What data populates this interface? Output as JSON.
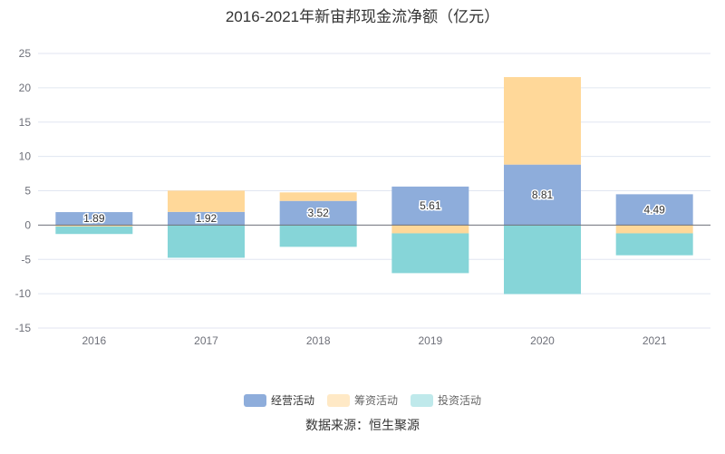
{
  "chart_data": {
    "type": "bar",
    "stacked": true,
    "title": "2016-2021年新宙邦现金流净额（亿元）",
    "source": "数据来源：恒生聚源",
    "categories": [
      "2016",
      "2017",
      "2018",
      "2019",
      "2020",
      "2021"
    ],
    "ylim": [
      -15,
      25
    ],
    "yticks": [
      -15,
      -10,
      -5,
      0,
      5,
      10,
      15,
      20,
      25
    ],
    "grid": true,
    "legend_position": "bottom",
    "series": [
      {
        "name": "经营活动",
        "color": "#8eaddb",
        "values": [
          1.89,
          1.92,
          3.52,
          5.61,
          8.81,
          4.49
        ],
        "labels": [
          "1.89",
          "1.92",
          "3.52",
          "5.61",
          "8.81",
          "4.49"
        ]
      },
      {
        "name": "筹资活动",
        "color": "#ffd899",
        "legend_color": "#ffe9c6",
        "values": [
          -0.2,
          3.1,
          1.24,
          -1.2,
          12.75,
          -1.2
        ]
      },
      {
        "name": "投资活动",
        "color": "#86d5d8",
        "legend_color": "#bfe9eb",
        "values": [
          -1.1,
          -4.76,
          -3.17,
          -5.8,
          -10.05,
          -3.2
        ]
      }
    ]
  }
}
